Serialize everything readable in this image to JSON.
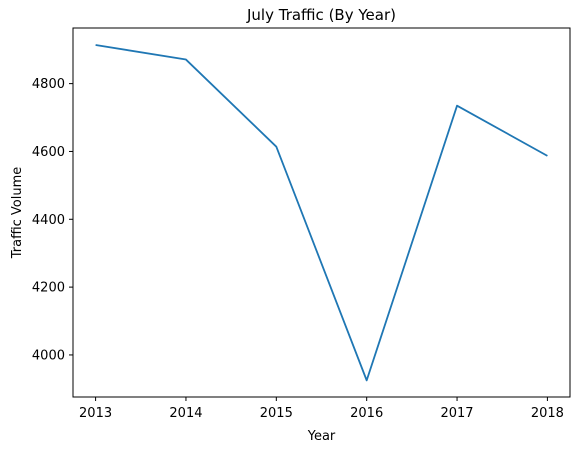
{
  "chart_data": {
    "type": "line",
    "title": "July Traffic (By Year)",
    "xlabel": "Year",
    "ylabel": "Traffic Volume",
    "x": [
      2013,
      2014,
      2015,
      2016,
      2017,
      2018
    ],
    "series": [
      {
        "values": [
          4914,
          4871,
          4614,
          3925,
          4735,
          4587
        ],
        "color": "#1f77b4"
      }
    ],
    "xticks": [
      "2013",
      "2014",
      "2015",
      "2016",
      "2017",
      "2018"
    ],
    "yticks": [
      "4000",
      "4200",
      "4400",
      "4600",
      "4800"
    ],
    "xlim": [
      2012.75,
      2018.25
    ],
    "ylim": [
      3876,
      4964
    ],
    "grid": false,
    "legend": "none"
  }
}
